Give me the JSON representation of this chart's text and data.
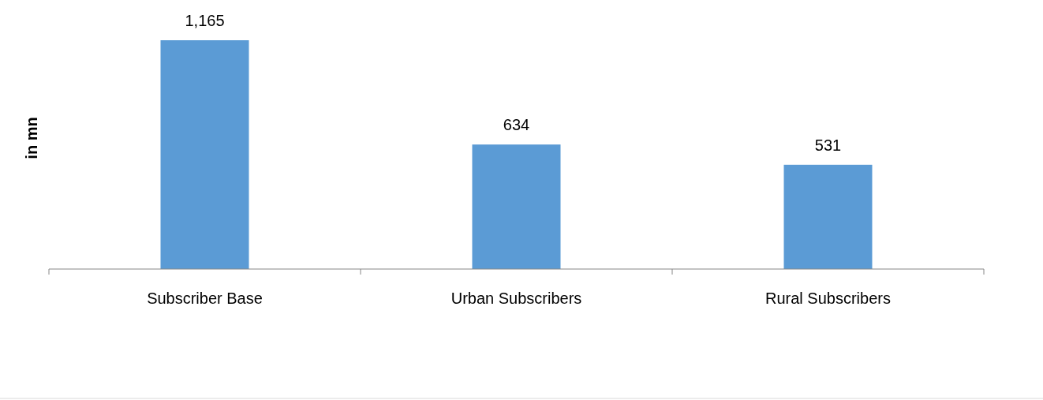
{
  "chart_data": {
    "type": "bar",
    "ylabel": "in mn",
    "categories": [
      "Subscriber Base",
      "Urban Subscribers",
      "Rural Subscribers"
    ],
    "values": [
      1165,
      634,
      531
    ],
    "value_labels": [
      "1,165",
      "634",
      "531"
    ],
    "color": "#5b9bd5"
  }
}
